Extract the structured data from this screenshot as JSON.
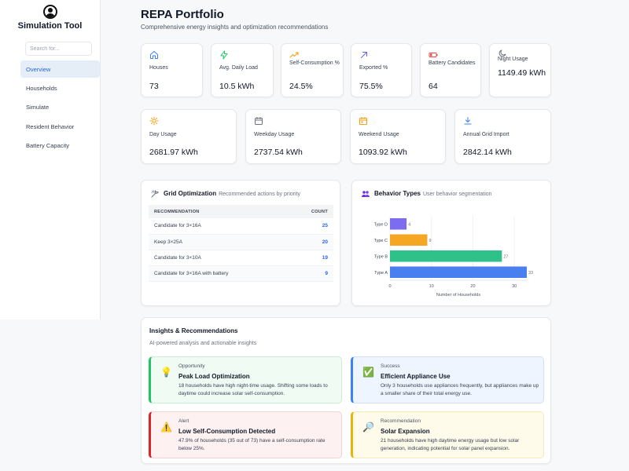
{
  "sidebar": {
    "app_title": "Simulation Tool",
    "search_placeholder": "Search for...",
    "items": [
      {
        "label": "Overview",
        "active": true
      },
      {
        "label": "Households"
      },
      {
        "label": "Simulate"
      },
      {
        "label": "Resident Behavior"
      },
      {
        "label": "Battery Capacity"
      }
    ]
  },
  "header": {
    "title": "REPA Portfolio",
    "subtitle": "Comprehensive energy insights and optimization recommendations"
  },
  "stats_row1": [
    {
      "label": "Houses",
      "value": "73",
      "icon": "house-icon",
      "color": "#3b82f6"
    },
    {
      "label": "Avg. Daily Load",
      "value": "10.5 kWh",
      "icon": "lightning-icon",
      "color": "#22c55e"
    },
    {
      "label": "Self-Consumption %",
      "value": "24.5%",
      "icon": "trending-up-icon",
      "color": "#f59e0b"
    },
    {
      "label": "Exported %",
      "value": "75.5%",
      "icon": "arrow-up-right-icon",
      "color": "#6366f1"
    },
    {
      "label": "Battery Candidates",
      "value": "64",
      "icon": "battery-low-icon",
      "color": "#ef4444"
    },
    {
      "label": "Night Usage",
      "value": "1149.49 kWh",
      "icon": "moon-icon",
      "color": "#6b7280"
    }
  ],
  "stats_row2": [
    {
      "label": "Day Usage",
      "value": "2681.97 kWh",
      "icon": "sun-icon",
      "color": "#f59e0b"
    },
    {
      "label": "Weekday Usage",
      "value": "2737.54 kWh",
      "icon": "calendar-icon",
      "color": "#6b7280"
    },
    {
      "label": "Weekend Usage",
      "value": "1093.92 kWh",
      "icon": "calendar-weekend-icon",
      "color": "#f59e0b"
    },
    {
      "label": "Annual Grid Import",
      "value": "2842.14 kWh",
      "icon": "download-icon",
      "color": "#3b82f6"
    }
  ],
  "grid_optimization": {
    "title": "Grid Optimization",
    "subtitle": "Recommended actions by priority",
    "columns": [
      "RECOMMENDATION",
      "COUNT"
    ],
    "rows": [
      {
        "recommendation": "Candidate for 3×16A",
        "count": "25"
      },
      {
        "recommendation": "Keep 3×25A",
        "count": "20"
      },
      {
        "recommendation": "Candidate for 3×10A",
        "count": "19"
      },
      {
        "recommendation": "Candidate for 3×16A with battery",
        "count": "9"
      }
    ]
  },
  "behavior": {
    "title": "Behavior Types",
    "subtitle": "User behavior segmentation"
  },
  "chart_data": {
    "type": "bar",
    "orientation": "horizontal",
    "categories": [
      "Type D",
      "Type C",
      "Type B",
      "Type A"
    ],
    "values": [
      4,
      9,
      27,
      33
    ],
    "colors": [
      "#7c6cf0",
      "#f5a623",
      "#2ec28a",
      "#4a7ff0"
    ],
    "xlabel": "Number of Households",
    "xlim": [
      0,
      33
    ],
    "xticks": [
      0,
      10,
      20,
      30
    ],
    "grid": true
  },
  "insights": {
    "title": "Insights & Recommendations",
    "subtitle": "AI-powered analysis and actionable insights",
    "items": [
      {
        "kind": "Opportunity",
        "heading": "Peak Load Optimization",
        "text": "18 households have high night-time usage. Shifting some loads to daytime could increase solar self-consumption.",
        "icon": "lightbulb-icon",
        "glyph": "💡",
        "accent": "#22c55e",
        "bg": "#f0fbf3",
        "border": "#c8eed3"
      },
      {
        "kind": "Success",
        "heading": "Efficient Appliance Use",
        "text": "Only 3 households use appliances frequently, but appliances make up a smaller share of their total energy use.",
        "icon": "check-box-icon",
        "glyph": "✅",
        "accent": "#3b82f6",
        "bg": "#eef5ff",
        "border": "#cfe0f7"
      },
      {
        "kind": "Alert",
        "heading": "Low Self-Consumption Detected",
        "text": "47.9% of households (35 out of 73) have a self-consumption rate below 25%.",
        "icon": "warning-icon",
        "glyph": "⚠️",
        "accent": "#dc2626",
        "bg": "#fef1f1",
        "border": "#f6d2d2"
      },
      {
        "kind": "Recommendation",
        "heading": "Solar Expansion",
        "text": "21 households have high daytime energy usage but low solar generation, indicating potential for solar panel expansion.",
        "icon": "magnifier-icon",
        "glyph": "🔎",
        "accent": "#eab308",
        "bg": "#fefbea",
        "border": "#f4e9b8"
      }
    ]
  }
}
